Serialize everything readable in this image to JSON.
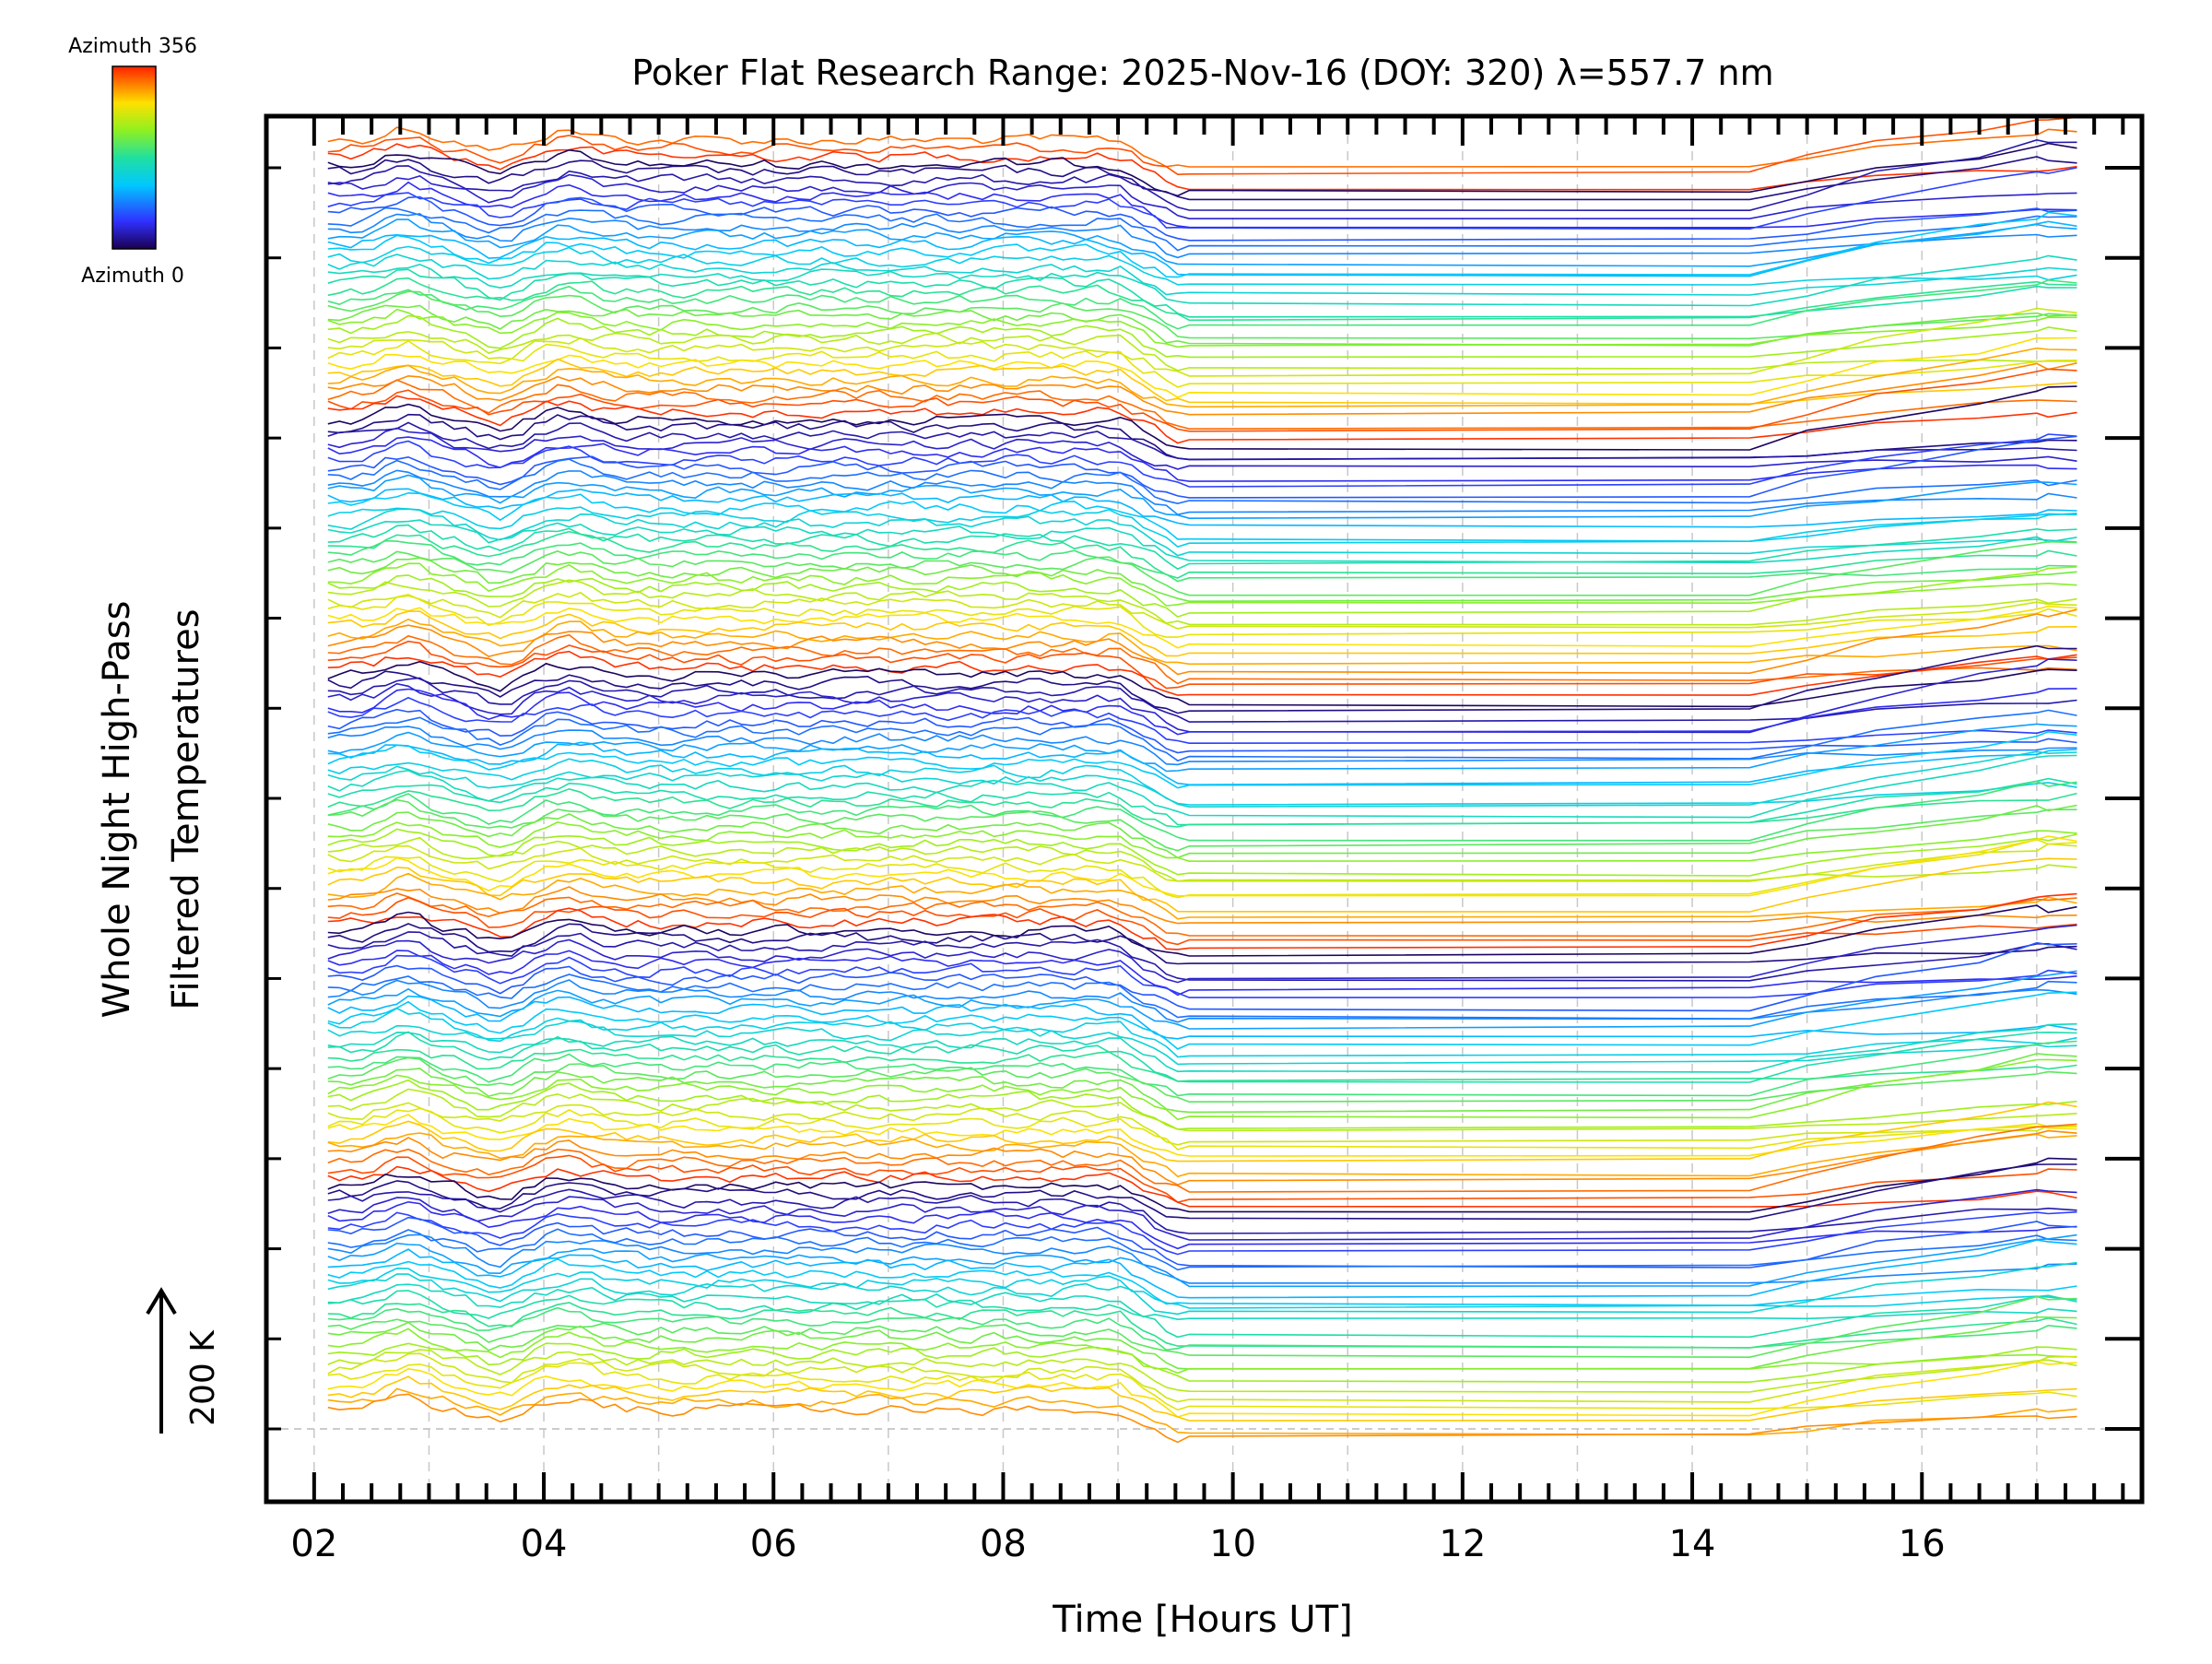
{
  "chart_data": {
    "type": "line",
    "title": "Poker Flat Research Range: 2025-Nov-16 (DOY: 320) λ=557.7 nm",
    "xlabel": "Time [Hours UT]",
    "ylabel_line1": "Whole Night High-Pass",
    "ylabel_line2": "Filtered Temperatures",
    "scale_label": "200 K",
    "colorbar": {
      "top_label": "Azimuth 356",
      "bottom_label": "Azimuth 0",
      "min": 0,
      "max": 356
    },
    "xlim": [
      1.6,
      17.9
    ],
    "x_tick_labels": [
      "02",
      "04",
      "06",
      "08",
      "10",
      "12",
      "14",
      "16"
    ],
    "x_tick_values": [
      2,
      4,
      6,
      8,
      10,
      12,
      14,
      16
    ],
    "y_offset_ticks": 15,
    "n_series": 160,
    "series_groups": 5,
    "series_per_group": 32,
    "data_gap_hours": [
      9.7,
      14.5
    ],
    "observation_end": 17.35,
    "notes": "Stacked traces, each offset vertically; colour encodes azimuth (0–356°). Individual trace values are not labelled in the original figure."
  }
}
